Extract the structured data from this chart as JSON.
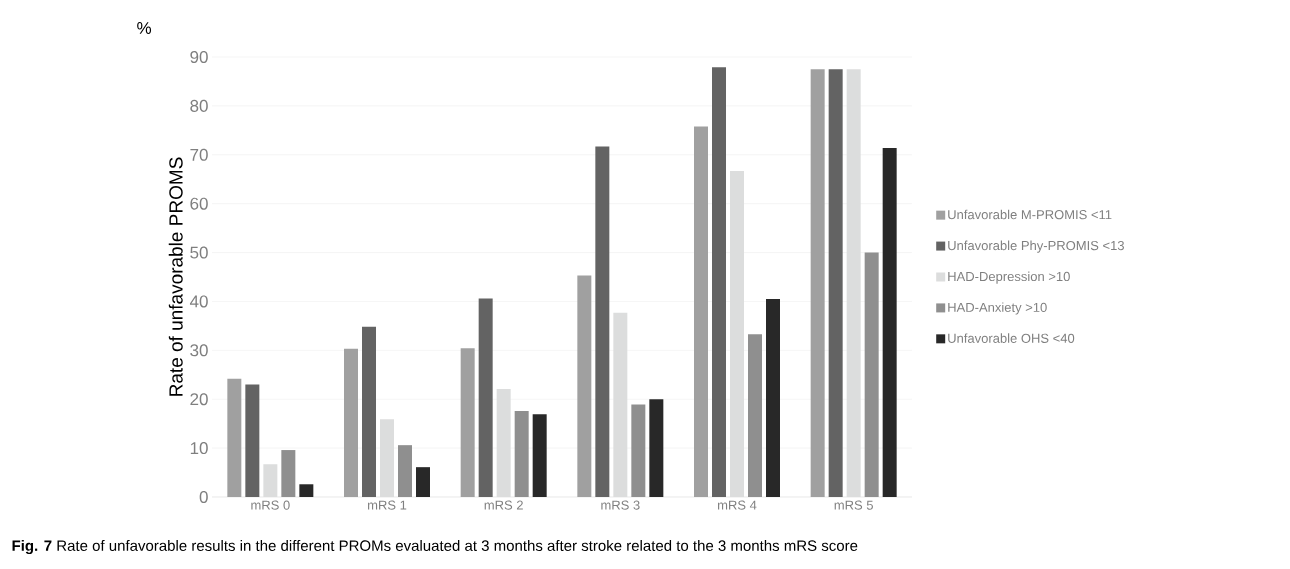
{
  "chart_data": {
    "type": "bar",
    "ylabel": "Rate of unfavorable PROMS",
    "categories": [
      "mRS 0",
      "mRS 1",
      "mRS 2",
      "mRS 3",
      "mRS 4",
      "mRS 5"
    ],
    "series": [
      {
        "name": "Unfavorable M-PROMIS <11",
        "color": "#a0a0a0",
        "values": [
          24.2,
          30.3,
          30.4,
          45.3,
          75.8,
          87.5
        ]
      },
      {
        "name": "Unfavorable Phy-PROMIS <13",
        "color": "#636363",
        "values": [
          23,
          34.8,
          40.6,
          71.7,
          87.9,
          87.5
        ]
      },
      {
        "name": "HAD-Depression >10",
        "color": "#dcdddd",
        "values": [
          6.7,
          15.9,
          22.1,
          37.7,
          66.7,
          87.5
        ]
      },
      {
        "name": "HAD-Anxiety >10",
        "color": "#8f8f8f",
        "values": [
          9.6,
          10.6,
          17.6,
          18.9,
          33.3,
          50
        ]
      },
      {
        "name": "Unfavorable OHS <40",
        "color": "#282828",
        "values": [
          2.6,
          6.1,
          16.9,
          20,
          40.5,
          71.4
        ]
      }
    ],
    "ylim": [
      0,
      90
    ],
    "yticks": [
      0,
      10,
      20,
      30,
      40,
      50,
      60,
      70,
      80,
      90
    ],
    "grid": "y",
    "legend": "right",
    "annotations": [
      "%",
      "**Fig. 7** Rate of unfavorable results in the different PROMs evaluated at 3 months after stroke related to the 3 months mRS score"
    ]
  }
}
